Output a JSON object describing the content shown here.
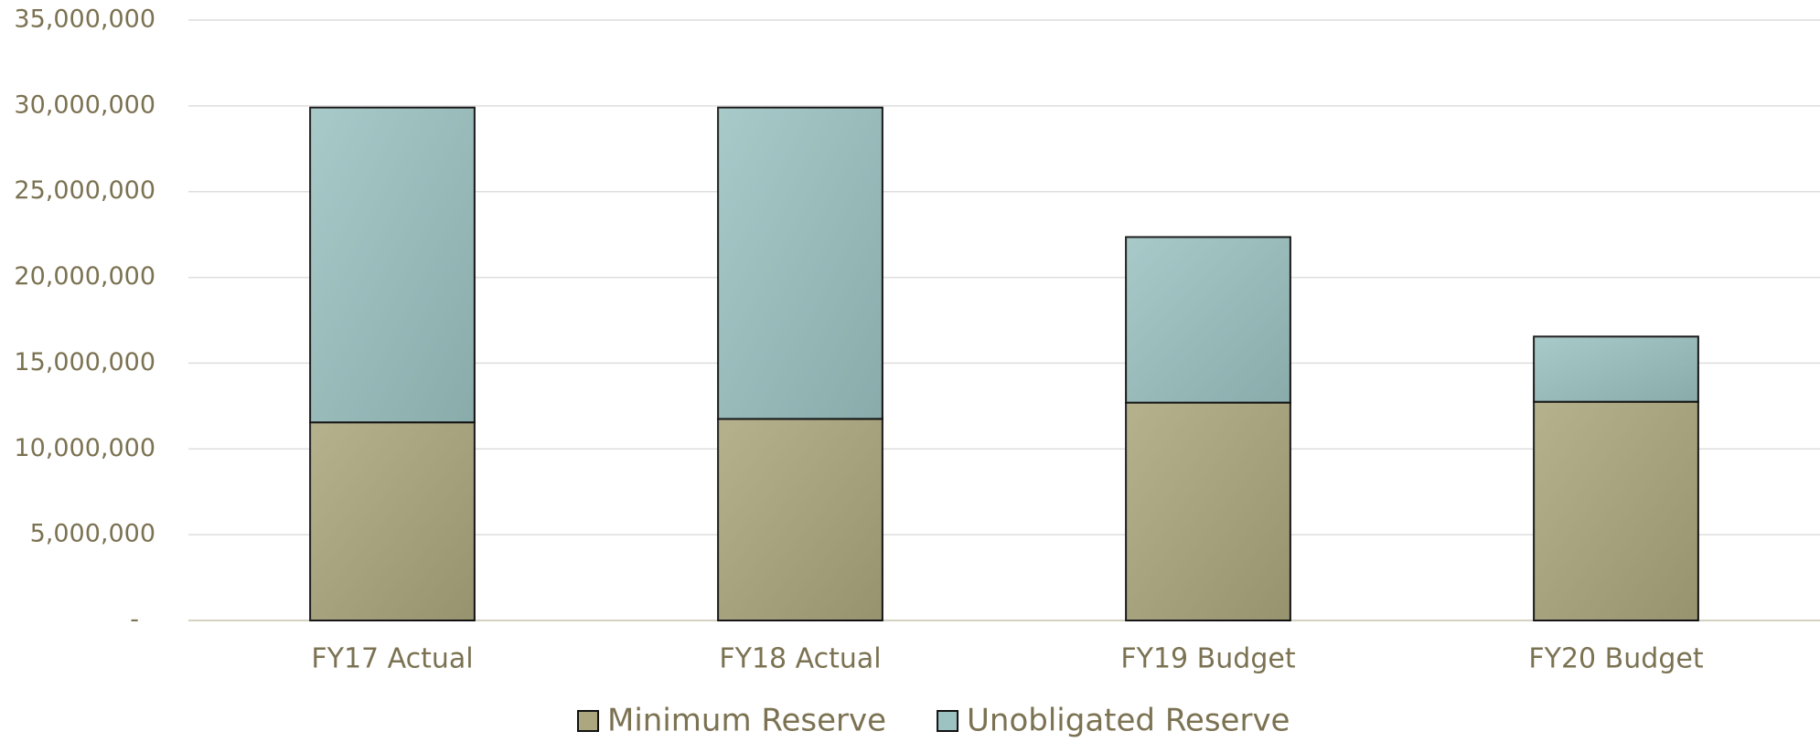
{
  "chart_data": {
    "type": "stacked_bar",
    "categories": [
      "FY17 Actual",
      "FY18 Actual",
      "FY19 Budget",
      "FY20 Budget"
    ],
    "series": [
      {
        "name": "Minimum Reserve",
        "color": "#aca77e",
        "values": [
          11550000,
          11750000,
          12700000,
          12750000
        ]
      },
      {
        "name": "Unobligated Reserve",
        "color": "#9cc3c2",
        "values": [
          18350000,
          18150000,
          9650000,
          3800000
        ]
      }
    ],
    "ylim": [
      0,
      35000000
    ],
    "yticks": [
      {
        "value": 0,
        "label": "-"
      },
      {
        "value": 5000000,
        "label": "5,000,000"
      },
      {
        "value": 10000000,
        "label": "10,000,000"
      },
      {
        "value": 15000000,
        "label": "15,000,000"
      },
      {
        "value": 20000000,
        "label": "20,000,000"
      },
      {
        "value": 25000000,
        "label": "25,000,000"
      },
      {
        "value": 30000000,
        "label": "30,000,000"
      },
      {
        "value": 35000000,
        "label": "35,000,000"
      }
    ],
    "grid": true,
    "legend": "bottom"
  }
}
